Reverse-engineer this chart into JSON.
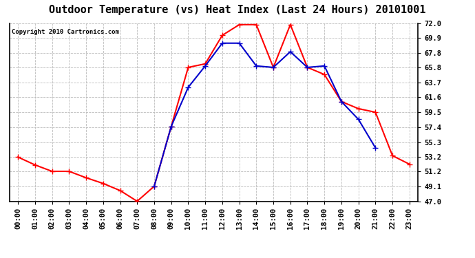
{
  "title": "Outdoor Temperature (vs) Heat Index (Last 24 Hours) 20101001",
  "copyright": "Copyright 2010 Cartronics.com",
  "hours": [
    "00:00",
    "01:00",
    "02:00",
    "03:00",
    "04:00",
    "05:00",
    "06:00",
    "07:00",
    "08:00",
    "09:00",
    "10:00",
    "11:00",
    "12:00",
    "13:00",
    "14:00",
    "15:00",
    "16:00",
    "17:00",
    "18:00",
    "19:00",
    "20:00",
    "21:00",
    "22:00",
    "23:00"
  ],
  "temp": [
    53.2,
    52.1,
    51.2,
    51.2,
    50.3,
    49.5,
    48.5,
    47.0,
    49.1,
    57.5,
    65.8,
    66.3,
    70.3,
    71.8,
    71.8,
    65.8,
    71.8,
    65.8,
    64.8,
    61.0,
    60.0,
    59.5,
    53.4,
    52.2
  ],
  "heat_index": [
    null,
    null,
    null,
    null,
    null,
    null,
    null,
    null,
    49.1,
    57.5,
    63.0,
    66.0,
    69.2,
    69.2,
    66.0,
    65.8,
    68.0,
    65.8,
    66.0,
    61.0,
    58.5,
    54.5,
    null,
    null
  ],
  "temp_color": "#ff0000",
  "heat_color": "#0000cc",
  "ylim": [
    47.0,
    72.0
  ],
  "ytick_vals": [
    47.0,
    49.1,
    51.2,
    53.2,
    55.3,
    57.4,
    59.5,
    61.6,
    63.7,
    65.8,
    67.8,
    69.9,
    72.0
  ],
  "ytick_labels": [
    "47.0",
    "49.1",
    "51.2",
    "53.2",
    "55.3",
    "57.4",
    "59.5",
    "61.6",
    "63.7",
    "65.8",
    "67.8",
    "69.9",
    "72.0"
  ],
  "background_color": "#ffffff",
  "grid_color": "#bbbbbb",
  "title_fontsize": 11,
  "tick_fontsize": 7.5,
  "copyright_fontsize": 6.5,
  "linewidth": 1.5,
  "markersize": 3
}
